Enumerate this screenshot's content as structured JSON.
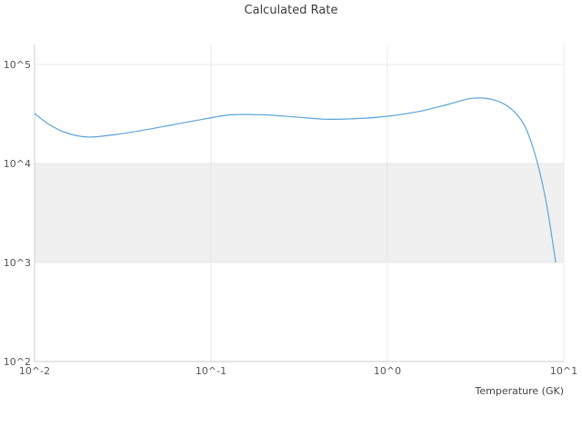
{
  "title": "Calculated Rate",
  "chart_data": {
    "type": "line",
    "title": "Calculated Rate",
    "xlabel": "Temperature (GK)",
    "ylabel": "",
    "x_scale": "log",
    "y_scale": "log",
    "xlim": [
      0.01,
      10
    ],
    "ylim": [
      100,
      100000
    ],
    "grid": true,
    "legend": "none",
    "x_ticks": [
      {
        "value": 0.01,
        "label": "10^-2"
      },
      {
        "value": 0.1,
        "label": "10^-1"
      },
      {
        "value": 1,
        "label": "10^0"
      },
      {
        "value": 10,
        "label": "10^1"
      }
    ],
    "y_ticks": [
      {
        "value": 100000,
        "label": "10^5"
      },
      {
        "value": 10000,
        "label": "10^4"
      },
      {
        "value": 1000,
        "label": "10^3"
      },
      {
        "value": 100,
        "label": "10^2"
      }
    ],
    "band": {
      "from": 1000,
      "to": 10000,
      "color": "#f0f0f0"
    },
    "colors": {
      "line": "#5ba3d8",
      "grid": "#e8e8e8",
      "axis": "#cccccc",
      "title_text": "#3b3b3b",
      "tick_text": "#555555"
    },
    "series": [
      {
        "name": "calculated-rate",
        "x": [
          0.01,
          0.012,
          0.015,
          0.02,
          0.028,
          0.04,
          0.06,
          0.09,
          0.13,
          0.2,
          0.3,
          0.45,
          0.7,
          1.0,
          1.5,
          2.2,
          3.0,
          4.0,
          5.0,
          6.0,
          7.0,
          8.0,
          9.0
        ],
        "y": [
          32000,
          25000,
          20500,
          18500,
          19500,
          21500,
          24500,
          28000,
          31000,
          31000,
          29500,
          28000,
          28500,
          30000,
          33500,
          39500,
          45500,
          44000,
          36000,
          24000,
          11000,
          3800,
          1000
        ]
      }
    ]
  }
}
